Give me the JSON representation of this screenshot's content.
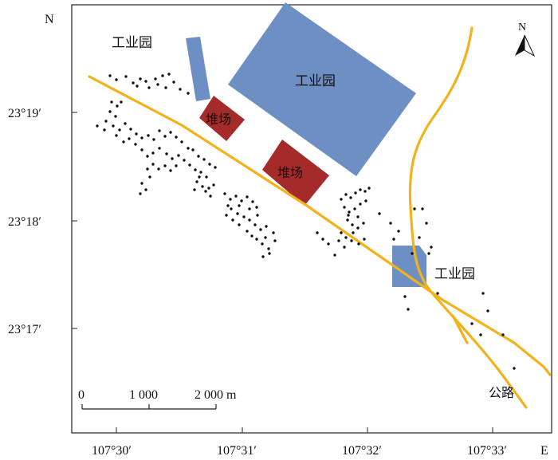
{
  "axis": {
    "corner_y": "N",
    "corner_x": "E",
    "lat_ticks": [
      "23°19′",
      "23°18′",
      "23°17′"
    ],
    "lon_ticks": [
      "107°30′",
      "107°31′",
      "107°32′",
      "107°33′"
    ]
  },
  "north_arrow": {
    "label": "N"
  },
  "scale_bar": {
    "labels": [
      "0",
      "1 000",
      "2 000 m"
    ]
  },
  "features": {
    "industrial_park_label": "工业园",
    "storage_yard_label": "堆场",
    "road_label": "公路"
  },
  "colors": {
    "industrial_park": "#6e8fc3",
    "storage_yard": "#a52a2a",
    "road": "#f2b21c",
    "sample_point": "#111111",
    "frame": "#222222"
  },
  "icons": [
    "north-arrow-icon"
  ]
}
